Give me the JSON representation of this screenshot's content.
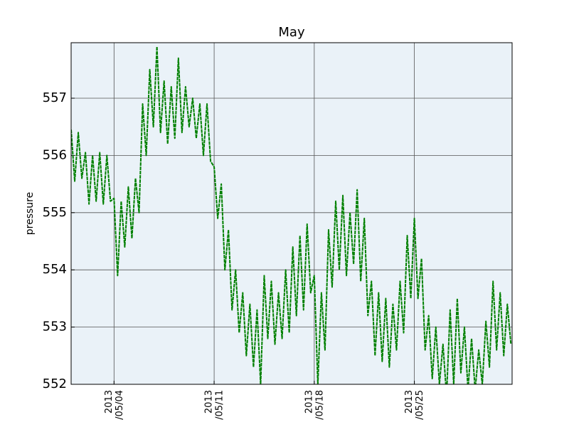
{
  "chart_data": {
    "type": "line",
    "title": "May",
    "y_label": "pressure",
    "color": "#008000",
    "grid": true,
    "xlim": [
      "2013-05-01 00:00",
      "2013-05-31 20:00"
    ],
    "xticks": [
      {
        "value": "2013-05-04 00:00",
        "label": "2013\n/05/04"
      },
      {
        "value": "2013-05-11 00:00",
        "label": "2013\n/05/11"
      },
      {
        "value": "2013-05-18 00:00",
        "label": "2013\n/05/18"
      },
      {
        "value": "2013-05-25 00:00",
        "label": "2013\n/05/25"
      }
    ],
    "ylim": [
      552,
      557.97
    ],
    "yticks": [
      552,
      553,
      554,
      555,
      556,
      557
    ],
    "x": [
      "2013-05-01 00:00",
      "2013-05-01 06:00",
      "2013-05-01 12:00",
      "2013-05-01 18:00",
      "2013-05-02 00:00",
      "2013-05-02 06:00",
      "2013-05-02 12:00",
      "2013-05-02 18:00",
      "2013-05-03 00:00",
      "2013-05-03 06:00",
      "2013-05-03 12:00",
      "2013-05-03 18:00",
      "2013-05-04 00:00",
      "2013-05-04 06:00",
      "2013-05-04 12:00",
      "2013-05-04 18:00",
      "2013-05-05 00:00",
      "2013-05-05 06:00",
      "2013-05-05 12:00",
      "2013-05-05 18:00",
      "2013-05-06 00:00",
      "2013-05-06 06:00",
      "2013-05-06 12:00",
      "2013-05-06 18:00",
      "2013-05-07 00:00",
      "2013-05-07 06:00",
      "2013-05-07 12:00",
      "2013-05-07 18:00",
      "2013-05-08 00:00",
      "2013-05-08 06:00",
      "2013-05-08 12:00",
      "2013-05-08 18:00",
      "2013-05-09 00:00",
      "2013-05-09 06:00",
      "2013-05-09 12:00",
      "2013-05-09 18:00",
      "2013-05-10 00:00",
      "2013-05-10 06:00",
      "2013-05-10 12:00",
      "2013-05-10 18:00",
      "2013-05-11 00:00",
      "2013-05-11 06:00",
      "2013-05-11 12:00",
      "2013-05-11 18:00",
      "2013-05-12 00:00",
      "2013-05-12 06:00",
      "2013-05-12 12:00",
      "2013-05-12 18:00",
      "2013-05-13 00:00",
      "2013-05-13 06:00",
      "2013-05-13 12:00",
      "2013-05-13 18:00",
      "2013-05-14 00:00",
      "2013-05-14 06:00",
      "2013-05-14 12:00",
      "2013-05-14 18:00",
      "2013-05-15 00:00",
      "2013-05-15 06:00",
      "2013-05-15 12:00",
      "2013-05-15 18:00",
      "2013-05-16 00:00",
      "2013-05-16 06:00",
      "2013-05-16 12:00",
      "2013-05-16 18:00",
      "2013-05-17 00:00",
      "2013-05-17 06:00",
      "2013-05-17 12:00",
      "2013-05-17 18:00",
      "2013-05-18 00:00",
      "2013-05-18 06:00",
      "2013-05-18 12:00",
      "2013-05-18 18:00",
      "2013-05-19 00:00",
      "2013-05-19 06:00",
      "2013-05-19 12:00",
      "2013-05-19 18:00",
      "2013-05-20 00:00",
      "2013-05-20 06:00",
      "2013-05-20 12:00",
      "2013-05-20 18:00",
      "2013-05-21 00:00",
      "2013-05-21 06:00",
      "2013-05-21 12:00",
      "2013-05-21 18:00",
      "2013-05-22 00:00",
      "2013-05-22 06:00",
      "2013-05-22 12:00",
      "2013-05-22 18:00",
      "2013-05-23 00:00",
      "2013-05-23 06:00",
      "2013-05-23 12:00",
      "2013-05-23 18:00",
      "2013-05-24 00:00",
      "2013-05-24 06:00",
      "2013-05-24 12:00",
      "2013-05-24 18:00",
      "2013-05-25 00:00",
      "2013-05-25 06:00",
      "2013-05-25 12:00",
      "2013-05-25 18:00",
      "2013-05-26 00:00",
      "2013-05-26 06:00",
      "2013-05-26 12:00",
      "2013-05-26 18:00",
      "2013-05-27 00:00",
      "2013-05-27 06:00",
      "2013-05-27 12:00",
      "2013-05-27 18:00",
      "2013-05-28 00:00",
      "2013-05-28 06:00",
      "2013-05-28 12:00",
      "2013-05-28 18:00",
      "2013-05-29 00:00",
      "2013-05-29 06:00",
      "2013-05-29 12:00",
      "2013-05-29 18:00",
      "2013-05-30 00:00",
      "2013-05-30 06:00",
      "2013-05-30 12:00",
      "2013-05-30 18:00",
      "2013-05-31 00:00",
      "2013-05-31 06:00",
      "2013-05-31 12:00",
      "2013-05-31 18:00"
    ],
    "values": [
      556.45,
      555.55,
      556.4,
      555.6,
      556.05,
      555.15,
      556.0,
      555.2,
      556.05,
      555.15,
      556.0,
      555.2,
      555.25,
      553.9,
      555.2,
      554.4,
      555.45,
      554.55,
      555.6,
      555.0,
      556.9,
      556.0,
      557.5,
      556.5,
      557.9,
      556.4,
      557.3,
      556.2,
      557.2,
      556.3,
      557.7,
      556.4,
      557.2,
      556.5,
      557.0,
      556.3,
      556.9,
      556.0,
      556.9,
      555.9,
      555.8,
      554.9,
      555.5,
      554.0,
      554.7,
      553.3,
      554.0,
      552.9,
      553.6,
      552.5,
      553.4,
      552.3,
      553.3,
      552.0,
      553.9,
      552.8,
      553.8,
      552.7,
      553.6,
      552.8,
      554.0,
      552.9,
      554.4,
      553.2,
      554.6,
      553.3,
      554.8,
      553.6,
      553.9,
      552.0,
      553.6,
      552.6,
      554.7,
      553.7,
      555.2,
      554.0,
      555.3,
      553.9,
      555.0,
      554.1,
      555.4,
      553.8,
      554.9,
      553.2,
      553.8,
      552.5,
      553.6,
      552.4,
      553.5,
      552.3,
      553.4,
      552.6,
      553.8,
      552.9,
      554.6,
      553.5,
      554.9,
      553.5,
      554.2,
      552.6,
      553.2,
      552.1,
      553.0,
      552.0,
      552.7,
      551.8,
      553.3,
      552.0,
      553.5,
      552.2,
      553.0,
      551.9,
      552.8,
      551.9,
      552.6,
      552.0,
      553.1,
      552.3,
      553.8,
      552.6,
      553.6,
      552.5,
      553.4,
      552.7
    ]
  }
}
